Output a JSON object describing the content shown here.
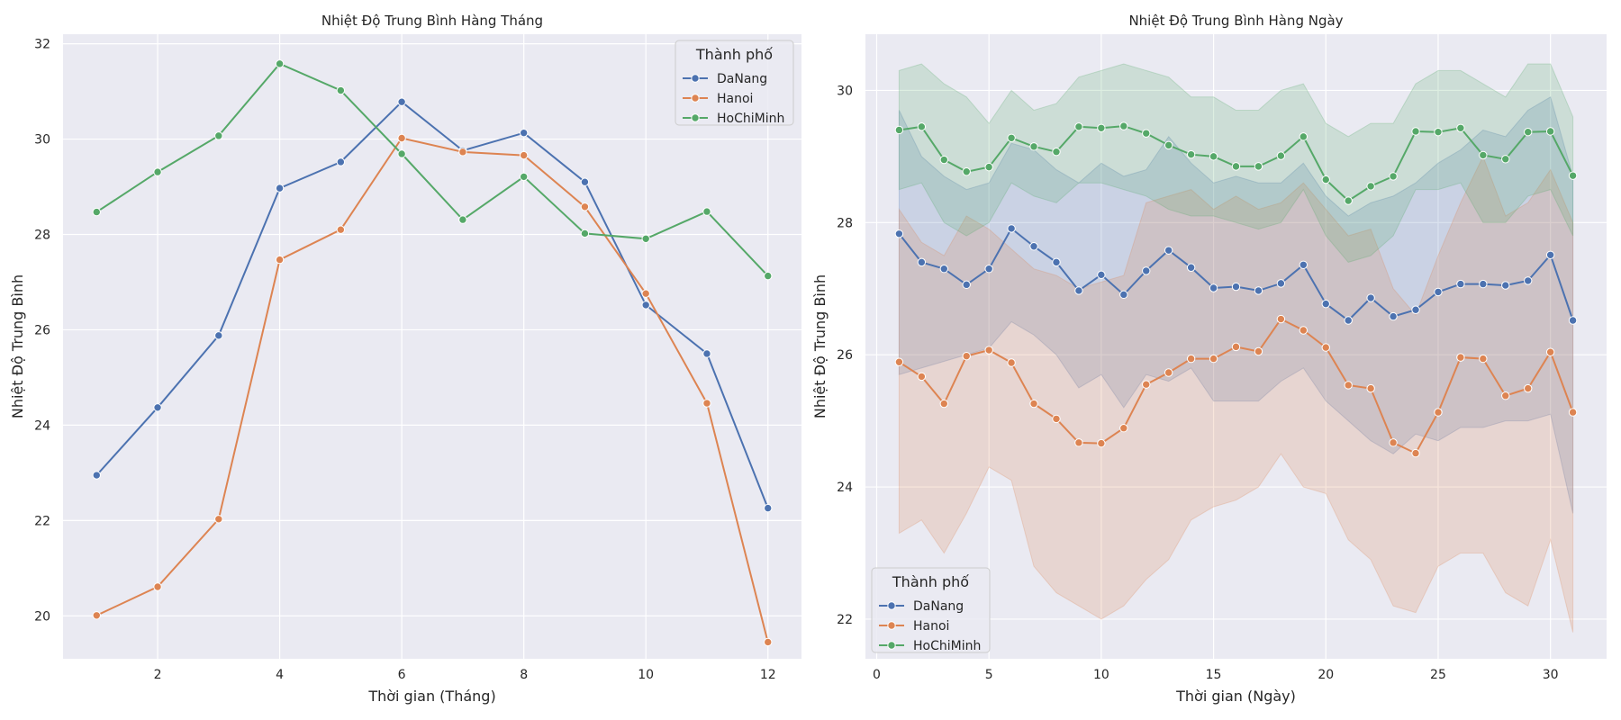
{
  "colors": {
    "axes_bg": "#eaeaf2",
    "grid": "#ffffff",
    "DaNang": "#4c72b0",
    "Hanoi": "#dd8452",
    "HoChiMinh": "#55a868"
  },
  "chart_data": [
    {
      "type": "line",
      "title": "Nhiệt Độ Trung Bình Hàng Tháng",
      "xlabel": "Thời gian (Tháng)",
      "ylabel": "Nhiệt Độ Trung Bình",
      "xlim": [
        0.45,
        12.55
      ],
      "ylim": [
        19.1,
        32.2
      ],
      "xticks": [
        2,
        4,
        6,
        8,
        10,
        12
      ],
      "yticks": [
        20,
        22,
        24,
        26,
        28,
        30,
        32
      ],
      "grid": true,
      "legend": {
        "title": "Thành phố",
        "placement": "upper right"
      },
      "x": [
        1,
        2,
        3,
        4,
        5,
        6,
        7,
        8,
        9,
        10,
        11,
        12
      ],
      "series": [
        {
          "name": "DaNang",
          "values": [
            22.95,
            24.37,
            25.88,
            28.97,
            29.52,
            30.78,
            29.76,
            30.13,
            29.1,
            26.52,
            25.5,
            22.26
          ]
        },
        {
          "name": "Hanoi",
          "values": [
            20.01,
            20.61,
            22.03,
            27.47,
            28.1,
            30.02,
            29.73,
            29.66,
            28.58,
            26.76,
            24.46,
            19.45
          ]
        },
        {
          "name": "HoChiMinh",
          "values": [
            28.47,
            29.31,
            30.07,
            31.58,
            31.02,
            29.69,
            28.31,
            29.21,
            28.02,
            27.91,
            28.48,
            27.13
          ]
        }
      ]
    },
    {
      "type": "line",
      "title": "Nhiệt Độ Trung Bình Hàng Ngày",
      "xlabel": "Thời gian (Ngày)",
      "ylabel": "Nhiệt Độ Trung Bình",
      "xlim": [
        -0.5,
        32.5
      ],
      "ylim": [
        21.4,
        30.85
      ],
      "xticks": [
        0,
        5,
        10,
        15,
        20,
        25,
        30
      ],
      "yticks": [
        22,
        24,
        26,
        28,
        30
      ],
      "grid": true,
      "legend": {
        "title": "Thành phố",
        "placement": "lower left"
      },
      "x": [
        1,
        2,
        3,
        4,
        5,
        6,
        7,
        8,
        9,
        10,
        11,
        12,
        13,
        14,
        15,
        16,
        17,
        18,
        19,
        20,
        21,
        22,
        23,
        24,
        25,
        26,
        27,
        28,
        29,
        30,
        31
      ],
      "series": [
        {
          "name": "DaNang",
          "values": [
            27.83,
            27.4,
            27.3,
            27.06,
            27.3,
            27.91,
            27.64,
            27.4,
            26.97,
            27.21,
            26.91,
            27.27,
            27.58,
            27.32,
            27.01,
            27.03,
            26.97,
            27.08,
            27.36,
            26.77,
            26.52,
            26.86,
            26.58,
            26.68,
            26.95,
            27.07,
            27.07,
            27.05,
            27.12,
            27.51,
            26.52
          ],
          "ci_low": [
            25.7,
            25.8,
            25.9,
            26.0,
            26.1,
            26.5,
            26.3,
            26.0,
            25.5,
            25.7,
            25.2,
            25.7,
            25.6,
            25.8,
            25.3,
            25.3,
            25.3,
            25.6,
            25.8,
            25.3,
            25.0,
            24.7,
            24.5,
            24.8,
            24.7,
            24.9,
            24.9,
            25.0,
            25.0,
            25.1,
            23.6
          ],
          "ci_high": [
            29.7,
            29.0,
            28.7,
            28.5,
            28.6,
            29.2,
            29.1,
            28.8,
            28.6,
            28.9,
            28.7,
            28.8,
            29.3,
            28.9,
            28.6,
            28.7,
            28.6,
            28.6,
            28.9,
            28.4,
            28.1,
            28.3,
            28.4,
            28.6,
            28.9,
            29.1,
            29.4,
            29.3,
            29.7,
            29.9,
            28.7
          ]
        },
        {
          "name": "Hanoi",
          "values": [
            25.89,
            25.67,
            25.26,
            25.98,
            26.07,
            25.88,
            25.26,
            25.03,
            24.67,
            24.66,
            24.89,
            25.55,
            25.73,
            25.94,
            25.94,
            26.12,
            26.05,
            26.54,
            26.37,
            26.11,
            25.54,
            25.49,
            24.67,
            24.51,
            25.13,
            25.96,
            25.94,
            25.38,
            25.49,
            26.04,
            25.13
          ],
          "ci_low": [
            23.3,
            23.5,
            23.0,
            23.6,
            24.3,
            24.1,
            22.8,
            22.4,
            22.2,
            22.0,
            22.2,
            22.6,
            22.9,
            23.5,
            23.7,
            23.8,
            24.0,
            24.5,
            24.0,
            23.9,
            23.2,
            22.9,
            22.2,
            22.1,
            22.8,
            23.0,
            23.0,
            22.4,
            22.2,
            23.2,
            21.8
          ],
          "ci_high": [
            28.2,
            27.7,
            27.5,
            28.1,
            27.9,
            27.6,
            27.3,
            27.2,
            27.0,
            27.1,
            27.2,
            28.3,
            28.4,
            28.5,
            28.2,
            28.4,
            28.2,
            28.3,
            28.6,
            28.2,
            27.8,
            27.9,
            27.0,
            26.6,
            27.5,
            28.3,
            29.0,
            28.1,
            28.3,
            28.8,
            28.0
          ]
        },
        {
          "name": "HoChiMinh",
          "values": [
            29.4,
            29.45,
            28.95,
            28.77,
            28.84,
            29.28,
            29.15,
            29.07,
            29.45,
            29.43,
            29.46,
            29.35,
            29.17,
            29.03,
            29.0,
            28.85,
            28.85,
            29.01,
            29.3,
            28.65,
            28.33,
            28.55,
            28.7,
            29.38,
            29.37,
            29.43,
            29.02,
            28.96,
            29.37,
            29.38,
            28.71
          ],
          "ci_low": [
            28.5,
            28.6,
            28.0,
            27.8,
            28.0,
            28.6,
            28.4,
            28.3,
            28.6,
            28.6,
            28.5,
            28.4,
            28.2,
            28.1,
            28.1,
            28.0,
            27.9,
            28.0,
            28.5,
            27.8,
            27.4,
            27.5,
            27.8,
            28.5,
            28.5,
            28.6,
            28.0,
            28.0,
            28.4,
            28.5,
            27.8
          ],
          "ci_high": [
            30.3,
            30.4,
            30.1,
            29.9,
            29.5,
            30.0,
            29.7,
            29.8,
            30.2,
            30.3,
            30.4,
            30.3,
            30.2,
            29.9,
            29.9,
            29.7,
            29.7,
            30.0,
            30.1,
            29.5,
            29.3,
            29.5,
            29.5,
            30.1,
            30.3,
            30.3,
            30.1,
            29.9,
            30.4,
            30.4,
            29.6
          ]
        }
      ]
    }
  ]
}
